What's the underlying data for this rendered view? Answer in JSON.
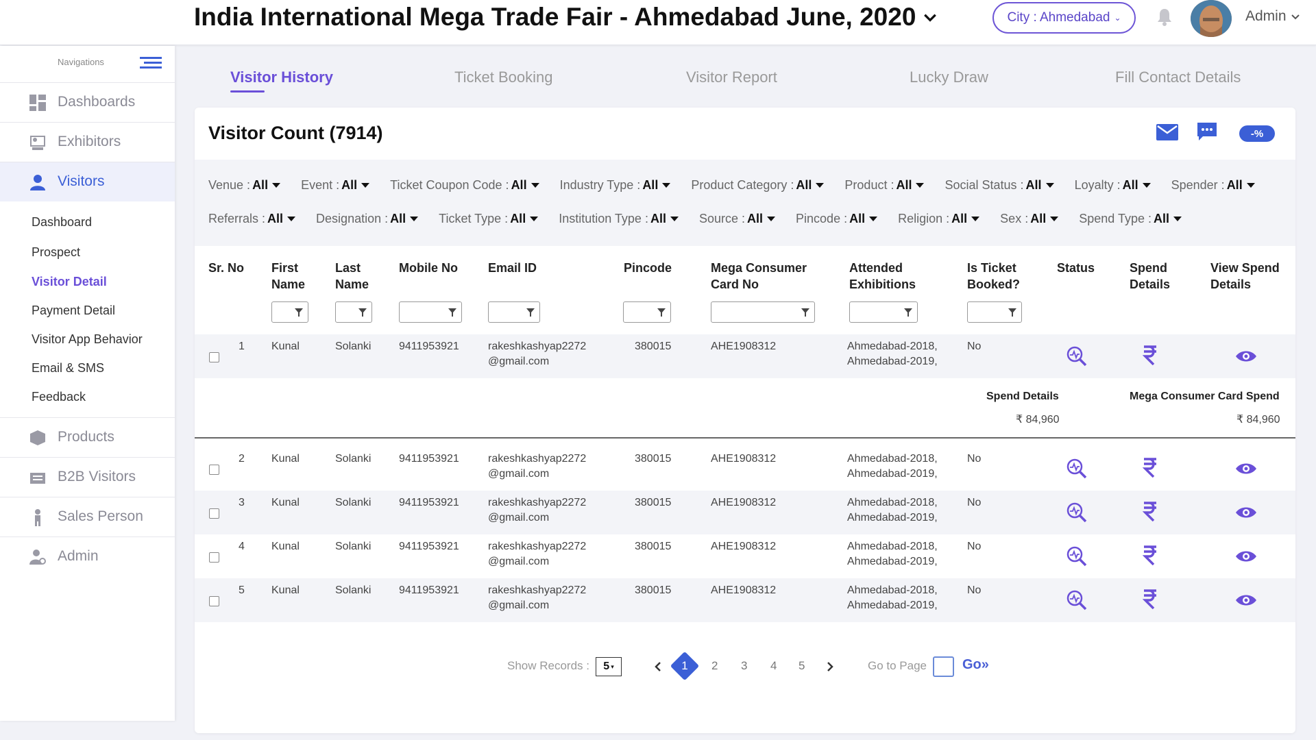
{
  "header": {
    "event_title": "India International Mega Trade Fair - Ahmedabad June, 2020",
    "city_label": "City : Ahmedabad",
    "user_name": "Admin"
  },
  "sidebar": {
    "caption": "Navigations",
    "items": [
      {
        "label": "Dashboards",
        "icon": "dashboard-icon"
      },
      {
        "label": "Exhibitors",
        "icon": "exhibitors-icon"
      },
      {
        "label": "Visitors",
        "icon": "visitor-icon"
      },
      {
        "label": "Products",
        "icon": "box-icon"
      },
      {
        "label": "B2B Visitors",
        "icon": "b2b-icon"
      },
      {
        "label": "Sales Person",
        "icon": "person-icon"
      },
      {
        "label": "Admin",
        "icon": "admin-icon"
      }
    ],
    "sub_items": [
      "Dashboard",
      "Prospect",
      "Visitor Detail",
      "Payment Detail",
      "Visitor App Behavior",
      "Email & SMS",
      "Feedback"
    ],
    "active_item": "Visitors",
    "active_sub_item": "Visitor Detail"
  },
  "tabs": [
    {
      "label": "Visitor History"
    },
    {
      "label": "Ticket Booking"
    },
    {
      "label": "Visitor Report"
    },
    {
      "label": "Lucky Draw"
    },
    {
      "label": "Fill Contact Details"
    }
  ],
  "active_tab": "Visitor History",
  "card": {
    "title": "Visitor Count (7914)",
    "discount_label": "-%",
    "filters_row1": [
      {
        "label": "Venue :",
        "value": "All"
      },
      {
        "label": "Event :",
        "value": "All"
      },
      {
        "label": "Ticket Coupon Code :",
        "value": "All"
      },
      {
        "label": "Industry Type :",
        "value": "All"
      },
      {
        "label": "Product Category :",
        "value": "All"
      },
      {
        "label": "Product :",
        "value": "All"
      },
      {
        "label": "Social Status :",
        "value": "All"
      },
      {
        "label": "Loyalty :",
        "value": "All"
      },
      {
        "label": "Spender :",
        "value": "All"
      }
    ],
    "filters_row2": [
      {
        "label": "Referrals :",
        "value": "All"
      },
      {
        "label": "Designation :",
        "value": "All"
      },
      {
        "label": "Ticket Type :",
        "value": "All"
      },
      {
        "label": "Institution Type :",
        "value": "All"
      },
      {
        "label": "Source :",
        "value": "All"
      },
      {
        "label": "Pincode :",
        "value": "All"
      },
      {
        "label": "Religion :",
        "value": "All"
      },
      {
        "label": "Sex :",
        "value": "All"
      },
      {
        "label": "Spend Type :",
        "value": "All"
      }
    ]
  },
  "table": {
    "columns": [
      "Sr. No",
      "First Name",
      "Last Name",
      "Mobile No",
      "Email ID",
      "Pincode",
      "Mega Consumer Card No",
      "Attended Exhibitions",
      "Is Ticket Booked?",
      "Status",
      "Spend Details",
      "View Spend Details"
    ],
    "rows": [
      {
        "sr": "1",
        "first": "Kunal",
        "last": "Solanki",
        "mobile": "9411953921",
        "email1": "rakeshkashyap2272",
        "email2": "@gmail.com",
        "pincode": "380015",
        "card": "AHE1908312",
        "exh1": "Ahmedabad-2018,",
        "exh2": "Ahmedabad-2019,",
        "booked": "No"
      },
      {
        "sr": "2",
        "first": "Kunal",
        "last": "Solanki",
        "mobile": "9411953921",
        "email1": "rakeshkashyap2272",
        "email2": "@gmail.com",
        "pincode": "380015",
        "card": "AHE1908312",
        "exh1": "Ahmedabad-2018,",
        "exh2": "Ahmedabad-2019,",
        "booked": "No"
      },
      {
        "sr": "3",
        "first": "Kunal",
        "last": "Solanki",
        "mobile": "9411953921",
        "email1": "rakeshkashyap2272",
        "email2": "@gmail.com",
        "pincode": "380015",
        "card": "AHE1908312",
        "exh1": "Ahmedabad-2018,",
        "exh2": "Ahmedabad-2019,",
        "booked": "No"
      },
      {
        "sr": "4",
        "first": "Kunal",
        "last": "Solanki",
        "mobile": "9411953921",
        "email1": "rakeshkashyap2272",
        "email2": "@gmail.com",
        "pincode": "380015",
        "card": "AHE1908312",
        "exh1": "Ahmedabad-2018,",
        "exh2": "Ahmedabad-2019,",
        "booked": "No"
      },
      {
        "sr": "5",
        "first": "Kunal",
        "last": "Solanki",
        "mobile": "9411953921",
        "email1": "rakeshkashyap2272",
        "email2": "@gmail.com",
        "pincode": "380015",
        "card": "AHE1908312",
        "exh1": "Ahmedabad-2018,",
        "exh2": "Ahmedabad-2019,",
        "booked": "No"
      }
    ],
    "expanded": {
      "spend_label": "Spend Details",
      "spend_value": "₹ 84,960",
      "card_spend_label": "Mega Consumer Card Spend",
      "card_spend_value": "₹ 84,960"
    }
  },
  "pagination": {
    "show_records_label": "Show Records :",
    "records_value": "5",
    "pages": [
      "1",
      "2",
      "3",
      "4",
      "5"
    ],
    "current_page": "1",
    "goto_label": "Go to Page",
    "go_label": "Go»"
  },
  "colors": {
    "accent": "#6a4fd8",
    "active_blue": "#3b5fd6",
    "background": "#f1f2f7"
  }
}
